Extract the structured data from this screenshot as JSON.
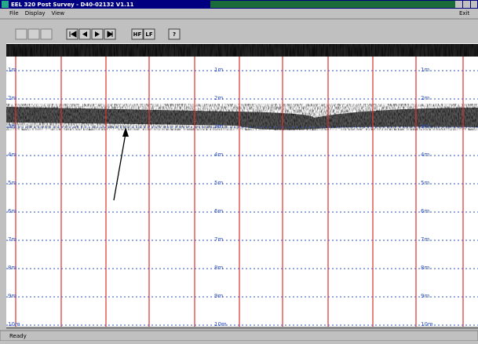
{
  "window": {
    "title": "EEL 320 Post Survey - D40-02132 V1.11"
  },
  "menu": [
    "File",
    "Display",
    "View"
  ],
  "menu_right": "Exit",
  "toolbar": [
    "HF",
    "LF",
    "?"
  ],
  "depth_labels": [
    "1m",
    "2m",
    "3m",
    "4m",
    "5m",
    "6m",
    "7m",
    "8m",
    "9m",
    "10m"
  ],
  "status": "Ready"
}
